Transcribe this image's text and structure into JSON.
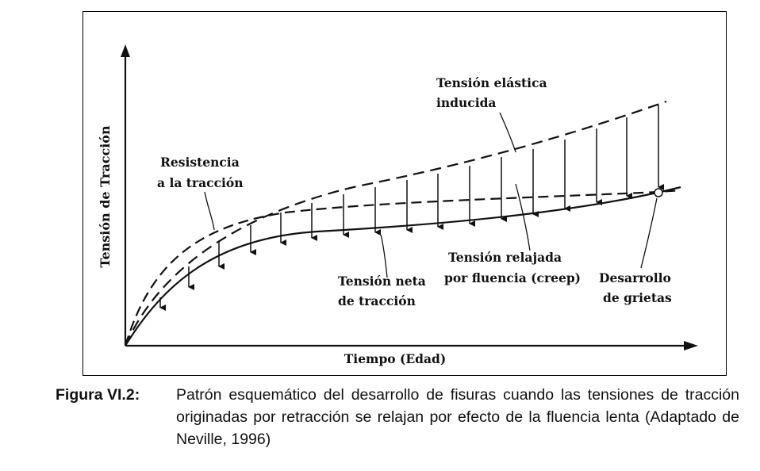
{
  "figure": {
    "axis_y_label": "Tensión de Tracción",
    "axis_x_label": "Tiempo (Edad)",
    "labels": {
      "resistencia": [
        "Resistencia",
        "a la tracción"
      ],
      "elastica": [
        "Tensión elástica",
        "inducida"
      ],
      "neta": [
        "Tensión neta",
        "de tracción"
      ],
      "relajada": [
        "Tensión relajada",
        "por fluencia (creep)"
      ],
      "grietas": [
        "Desarrollo",
        "de grietas"
      ]
    }
  },
  "caption": {
    "label": "Figura VI.2:",
    "text": "Patrón esquemático del desarrollo de fisuras cuando las tensiones de tracción originadas por retracción se relajan por efecto de la fluencia lenta (Adaptado de Neville, 1996)"
  }
}
